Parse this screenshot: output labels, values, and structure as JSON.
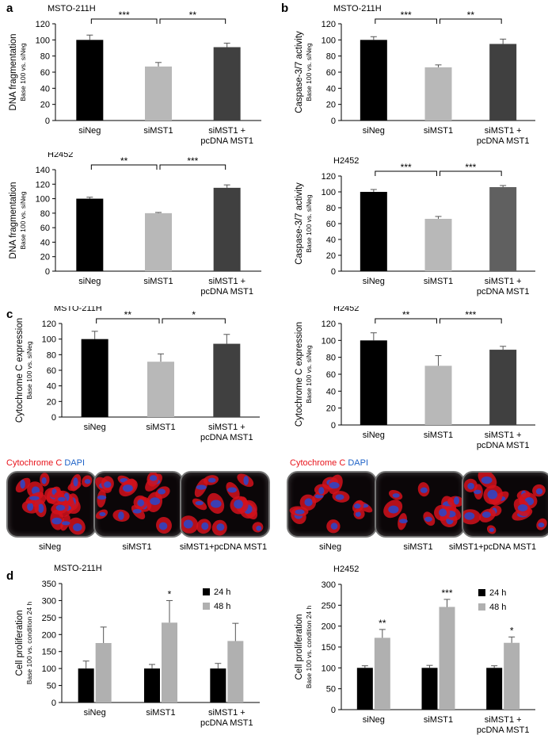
{
  "panels": [
    {
      "letter": "a"
    },
    {
      "letter": "b"
    },
    {
      "letter": "c"
    },
    {
      "letter": "d"
    }
  ],
  "stain_legend": {
    "red_label": "Cytochrome C",
    "blue_label": "DAPI",
    "red_color": "#e8141c",
    "blue_color": "#1f63c8"
  },
  "micrographs": {
    "left": [
      "siNeg",
      "siMST1",
      "siMST1+pcDNA MST1"
    ],
    "right": [
      "siNeg",
      "siMST1",
      "siMST1+pcDNA MST1"
    ]
  },
  "chart_data": [
    {
      "id": "a-top",
      "type": "bar",
      "title": "MSTO-211H",
      "ylabel": "DNA fragmentation",
      "ysublabel": "Base 100 vs. siNeg",
      "ylim": [
        0,
        120
      ],
      "yticks": [
        0,
        20,
        40,
        60,
        80,
        100,
        120
      ],
      "categories": [
        [
          "siNeg"
        ],
        [
          "siMST1"
        ],
        [
          "siMST1 +",
          "pcDNA MST1"
        ]
      ],
      "values": [
        100,
        67,
        91
      ],
      "errors": [
        6,
        5,
        5
      ],
      "colors": [
        "#000000",
        "#b8b8b8",
        "#404040"
      ],
      "brackets": [
        {
          "from": 0,
          "to": 1,
          "label": "***"
        },
        {
          "from": 1,
          "to": 2,
          "label": "**"
        }
      ]
    },
    {
      "id": "b-top",
      "type": "bar",
      "title": "MSTO-211H",
      "ylabel": "Caspase-3/7 activity",
      "ysublabel": "Base 100 vs. siNeg",
      "ylim": [
        0,
        120
      ],
      "yticks": [
        0,
        20,
        40,
        60,
        80,
        100,
        120
      ],
      "categories": [
        [
          "siNeg"
        ],
        [
          "siMST1"
        ],
        [
          "siMST1 +",
          "pcDNA MST1"
        ]
      ],
      "values": [
        100,
        66,
        95
      ],
      "errors": [
        4,
        3,
        6
      ],
      "colors": [
        "#000000",
        "#b8b8b8",
        "#404040"
      ],
      "brackets": [
        {
          "from": 0,
          "to": 1,
          "label": "***"
        },
        {
          "from": 1,
          "to": 2,
          "label": "**"
        }
      ]
    },
    {
      "id": "a-bottom",
      "type": "bar",
      "title": "H2452",
      "ylabel": "DNA fragmentation",
      "ysublabel": "Base 100 vs. siNeg",
      "ylim": [
        0,
        140
      ],
      "yticks": [
        0,
        20,
        40,
        60,
        80,
        100,
        120,
        140
      ],
      "categories": [
        [
          "siNeg"
        ],
        [
          "siMST1"
        ],
        [
          "siMST1 +",
          "pcDNA MST1"
        ]
      ],
      "values": [
        100,
        80,
        115
      ],
      "errors": [
        2,
        1,
        4
      ],
      "colors": [
        "#000000",
        "#b8b8b8",
        "#404040"
      ],
      "brackets": [
        {
          "from": 0,
          "to": 1,
          "label": "**"
        },
        {
          "from": 1,
          "to": 2,
          "label": "***"
        }
      ]
    },
    {
      "id": "b-bottom",
      "type": "bar",
      "title": "H2452",
      "ylabel": "Caspase-3/7 activity",
      "ysublabel": "Base 100 vs. siNeg",
      "ylim": [
        0,
        120
      ],
      "yticks": [
        0,
        20,
        40,
        60,
        80,
        100,
        120
      ],
      "categories": [
        [
          "siNeg"
        ],
        [
          "siMST1"
        ],
        [
          "siMST1 +",
          "pcDNA MST1"
        ]
      ],
      "values": [
        100,
        66,
        106
      ],
      "errors": [
        3,
        3,
        2
      ],
      "colors": [
        "#000000",
        "#b8b8b8",
        "#606060"
      ],
      "brackets": [
        {
          "from": 0,
          "to": 1,
          "label": "***"
        },
        {
          "from": 1,
          "to": 2,
          "label": "***"
        }
      ]
    },
    {
      "id": "c-left",
      "type": "bar",
      "title": "MSTO-211H",
      "ylabel": "Cytochrome C expression",
      "ysublabel": "Base 100 vs. siNeg",
      "ylim": [
        0,
        120
      ],
      "yticks": [
        0,
        20,
        40,
        60,
        80,
        100,
        120
      ],
      "categories": [
        [
          "siNeg"
        ],
        [
          "siMST1"
        ],
        [
          "siMST1 +",
          "pcDNA MST1"
        ]
      ],
      "values": [
        100,
        71,
        94
      ],
      "errors": [
        10,
        10,
        12
      ],
      "colors": [
        "#000000",
        "#b8b8b8",
        "#404040"
      ],
      "brackets": [
        {
          "from": 0,
          "to": 1,
          "label": "**"
        },
        {
          "from": 1,
          "to": 2,
          "label": "*"
        }
      ]
    },
    {
      "id": "c-right",
      "type": "bar",
      "title": "H2452",
      "ylabel": "Cytochrome C expression",
      "ysublabel": "Base 100 vs. siNeg",
      "ylim": [
        0,
        120
      ],
      "yticks": [
        0,
        20,
        40,
        60,
        80,
        100,
        120
      ],
      "categories": [
        [
          "siNeg"
        ],
        [
          "siMST1"
        ],
        [
          "siMST1 +",
          "pcDNA MST1"
        ]
      ],
      "values": [
        100,
        70,
        89
      ],
      "errors": [
        9,
        12,
        4
      ],
      "colors": [
        "#000000",
        "#b8b8b8",
        "#404040"
      ],
      "brackets": [
        {
          "from": 0,
          "to": 1,
          "label": "**"
        },
        {
          "from": 1,
          "to": 2,
          "label": "***"
        }
      ]
    },
    {
      "id": "d-left",
      "type": "bar",
      "title": "MSTO-211H",
      "ylabel": "Cell proliferation",
      "ysublabel": "Base 100 vs. condition 24 h",
      "ylim": [
        0,
        350
      ],
      "yticks": [
        0,
        50,
        100,
        150,
        200,
        250,
        300,
        350
      ],
      "categories": [
        [
          "siNeg"
        ],
        [
          "siMST1"
        ],
        [
          "siMST1 +",
          "pcDNA MST1"
        ]
      ],
      "series": [
        {
          "name": "24 h",
          "color": "#000000",
          "values": [
            100,
            100,
            100
          ],
          "errors": [
            22,
            12,
            15
          ],
          "stars": [
            "",
            "",
            ""
          ]
        },
        {
          "name": "48 h",
          "color": "#b0b0b0",
          "values": [
            175,
            235,
            181
          ],
          "errors": [
            47,
            65,
            52
          ],
          "stars": [
            "",
            "*",
            ""
          ]
        }
      ]
    },
    {
      "id": "d-right",
      "type": "bar",
      "title": "H2452",
      "ylabel": "Cell proliferation",
      "ysublabel": "Base 100 vs. condition 24 h",
      "ylim": [
        0,
        300
      ],
      "yticks": [
        0,
        50,
        100,
        150,
        200,
        250,
        300
      ],
      "categories": [
        [
          "siNeg"
        ],
        [
          "siMST1"
        ],
        [
          "siMST1 +",
          "pcDNA MST1"
        ]
      ],
      "series": [
        {
          "name": "24 h",
          "color": "#000000",
          "values": [
            100,
            100,
            100
          ],
          "errors": [
            5,
            6,
            5
          ],
          "stars": [
            "",
            "",
            ""
          ]
        },
        {
          "name": "48 h",
          "color": "#b0b0b0",
          "values": [
            172,
            246,
            160
          ],
          "errors": [
            20,
            18,
            14
          ],
          "stars": [
            "**",
            "***",
            "*"
          ]
        }
      ]
    }
  ]
}
